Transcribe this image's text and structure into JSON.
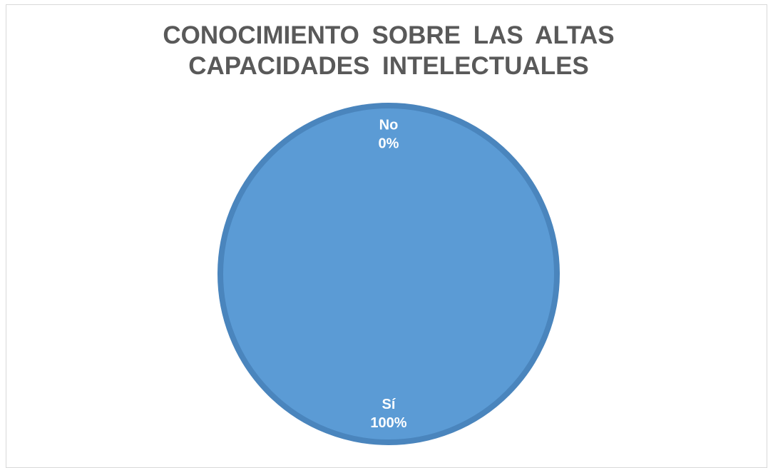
{
  "chart_data": {
    "type": "pie",
    "title": "CONOCIMIENTO SOBRE LAS ALTAS CAPACIDADES INTELECTUALES",
    "categories": [
      "Sí",
      "No"
    ],
    "values": [
      100,
      0
    ],
    "value_labels": [
      "100%",
      "0%"
    ],
    "colors": [
      "#5b9bd5",
      "#ed7d31"
    ]
  }
}
